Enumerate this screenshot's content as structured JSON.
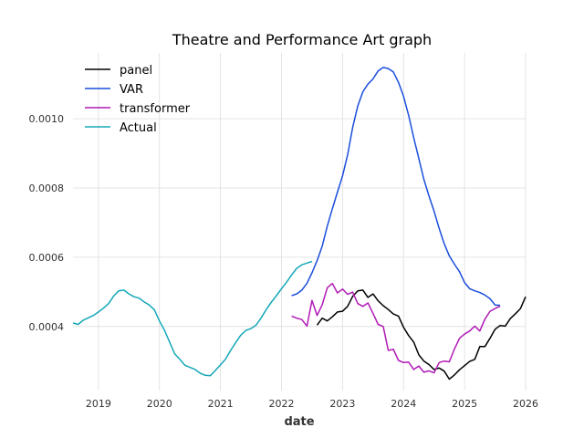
{
  "chart_data": {
    "type": "line",
    "title": "Theatre and Performance Art graph",
    "xlabel": "date",
    "ylabel": "",
    "xlim": [
      "2018-08-01",
      "2026-01-01"
    ],
    "ylim": [
      0.000215,
      0.00119
    ],
    "x_ticks": [
      "2019",
      "2020",
      "2021",
      "2022",
      "2023",
      "2024",
      "2025",
      "2026"
    ],
    "y_ticks": [
      "0.0004",
      "0.0006",
      "0.0008",
      "0.0010"
    ],
    "grid": true,
    "legend_position": "top-left",
    "series": [
      {
        "name": "panel",
        "color": "#000000",
        "x": [
          "2022-08",
          "2022-09",
          "2022-10",
          "2022-11",
          "2022-12",
          "2023-01",
          "2023-02",
          "2023-03",
          "2023-04",
          "2023-05",
          "2023-06",
          "2023-07",
          "2023-08",
          "2023-09",
          "2023-10",
          "2023-11",
          "2023-12",
          "2024-01",
          "2024-02",
          "2024-03",
          "2024-04",
          "2024-05",
          "2024-06",
          "2024-07",
          "2024-08",
          "2024-09",
          "2024-10",
          "2024-11",
          "2024-12",
          "2025-01",
          "2025-02",
          "2025-03",
          "2025-04",
          "2025-05",
          "2025-06",
          "2025-07",
          "2025-08",
          "2025-09",
          "2025-10",
          "2025-11",
          "2025-12",
          "2026-01"
        ],
        "values": [
          0.000404,
          0.000424,
          0.000416,
          0.000428,
          0.000442,
          0.000444,
          0.000458,
          0.000487,
          0.000503,
          0.000505,
          0.000484,
          0.000494,
          0.000474,
          0.00046,
          0.000449,
          0.000436,
          0.00043,
          0.000398,
          0.000374,
          0.000355,
          0.000318,
          0.0003,
          0.00029,
          0.000276,
          0.00028,
          0.000271,
          0.000248,
          0.00026,
          0.000275,
          0.000287,
          0.000299,
          0.000305,
          0.000342,
          0.000342,
          0.000366,
          0.000392,
          0.000403,
          0.000401,
          0.000423,
          0.000437,
          0.000452,
          0.000486
        ]
      },
      {
        "name": "VAR",
        "color": "#1a4ddc",
        "x": [
          "2022-03",
          "2022-04",
          "2022-05",
          "2022-06",
          "2022-07",
          "2022-08",
          "2022-09",
          "2022-10",
          "2022-11",
          "2022-12",
          "2023-01",
          "2023-02",
          "2023-03",
          "2023-04",
          "2023-05",
          "2023-06",
          "2023-07",
          "2023-08",
          "2023-09",
          "2023-10",
          "2023-11",
          "2023-12",
          "2024-01",
          "2024-02",
          "2024-03",
          "2024-04",
          "2024-05",
          "2024-06",
          "2024-07",
          "2024-08",
          "2024-09",
          "2024-10",
          "2024-11",
          "2024-12",
          "2025-01",
          "2025-02",
          "2025-03",
          "2025-04",
          "2025-05",
          "2025-06",
          "2025-07",
          "2025-08"
        ],
        "values": [
          0.000489,
          0.000494,
          0.000505,
          0.000525,
          0.000555,
          0.00059,
          0.000632,
          0.00069,
          0.00074,
          0.000788,
          0.000835,
          0.000895,
          0.000975,
          0.001037,
          0.001078,
          0.0011,
          0.001115,
          0.001138,
          0.001148,
          0.001145,
          0.001135,
          0.001105,
          0.001065,
          0.00101,
          0.000945,
          0.000885,
          0.000825,
          0.000777,
          0.000733,
          0.000683,
          0.000639,
          0.000604,
          0.00058,
          0.000558,
          0.000527,
          0.000509,
          0.000503,
          0.000498,
          0.000491,
          0.00048,
          0.000462,
          0.000461
        ]
      },
      {
        "name": "transformer",
        "color": "#b01ab5",
        "x": [
          "2022-03",
          "2022-04",
          "2022-05",
          "2022-06",
          "2022-07",
          "2022-08",
          "2022-09",
          "2022-10",
          "2022-11",
          "2022-12",
          "2023-01",
          "2023-02",
          "2023-03",
          "2023-04",
          "2023-05",
          "2023-06",
          "2023-07",
          "2023-08",
          "2023-09",
          "2023-10",
          "2023-11",
          "2023-12",
          "2024-01",
          "2024-02",
          "2024-03",
          "2024-04",
          "2024-05",
          "2024-06",
          "2024-07",
          "2024-08",
          "2024-09",
          "2024-10",
          "2024-11",
          "2024-12",
          "2025-01",
          "2025-02",
          "2025-03",
          "2025-04",
          "2025-05",
          "2025-06",
          "2025-07",
          "2025-08"
        ],
        "values": [
          0.00043,
          0.000424,
          0.00042,
          0.000401,
          0.000475,
          0.000432,
          0.000463,
          0.000512,
          0.000524,
          0.000497,
          0.000508,
          0.000493,
          0.000499,
          0.000466,
          0.000458,
          0.000468,
          0.000438,
          0.000406,
          0.0004,
          0.000331,
          0.000334,
          0.000302,
          0.000296,
          0.000297,
          0.000276,
          0.000286,
          0.000268,
          0.000272,
          0.000266,
          0.000296,
          0.0003,
          0.000298,
          0.000335,
          0.000366,
          0.000378,
          0.000387,
          0.000401,
          0.000387,
          0.000421,
          0.000444,
          0.000452,
          0.000459
        ]
      },
      {
        "name": "Actual",
        "color": "#14a8b8",
        "x": [
          "2018-08",
          "2018-09",
          "2018-10",
          "2018-11",
          "2018-12",
          "2019-01",
          "2019-02",
          "2019-03",
          "2019-04",
          "2019-05",
          "2019-06",
          "2019-07",
          "2019-08",
          "2019-09",
          "2019-10",
          "2019-11",
          "2019-12",
          "2020-01",
          "2020-02",
          "2020-03",
          "2020-04",
          "2020-05",
          "2020-06",
          "2020-07",
          "2020-08",
          "2020-09",
          "2020-10",
          "2020-11",
          "2020-12",
          "2021-01",
          "2021-02",
          "2021-03",
          "2021-04",
          "2021-05",
          "2021-06",
          "2021-07",
          "2021-08",
          "2021-09",
          "2021-10",
          "2021-11",
          "2021-12",
          "2022-01",
          "2022-02",
          "2022-03",
          "2022-04",
          "2022-05",
          "2022-06",
          "2022-07"
        ],
        "values": [
          0.00041,
          0.000406,
          0.000418,
          0.000425,
          0.000432,
          0.000442,
          0.000453,
          0.000466,
          0.000488,
          0.000503,
          0.000505,
          0.000494,
          0.000486,
          0.000482,
          0.000471,
          0.000462,
          0.000448,
          0.000416,
          0.000389,
          0.000355,
          0.000321,
          0.000305,
          0.000288,
          0.000282,
          0.000276,
          0.000265,
          0.000259,
          0.000258,
          0.000273,
          0.000289,
          0.000306,
          0.000331,
          0.000354,
          0.000375,
          0.000389,
          0.000394,
          0.000404,
          0.000425,
          0.000449,
          0.00047,
          0.000489,
          0.000509,
          0.000528,
          0.000549,
          0.000568,
          0.000578,
          0.000583,
          0.000588
        ]
      }
    ]
  }
}
